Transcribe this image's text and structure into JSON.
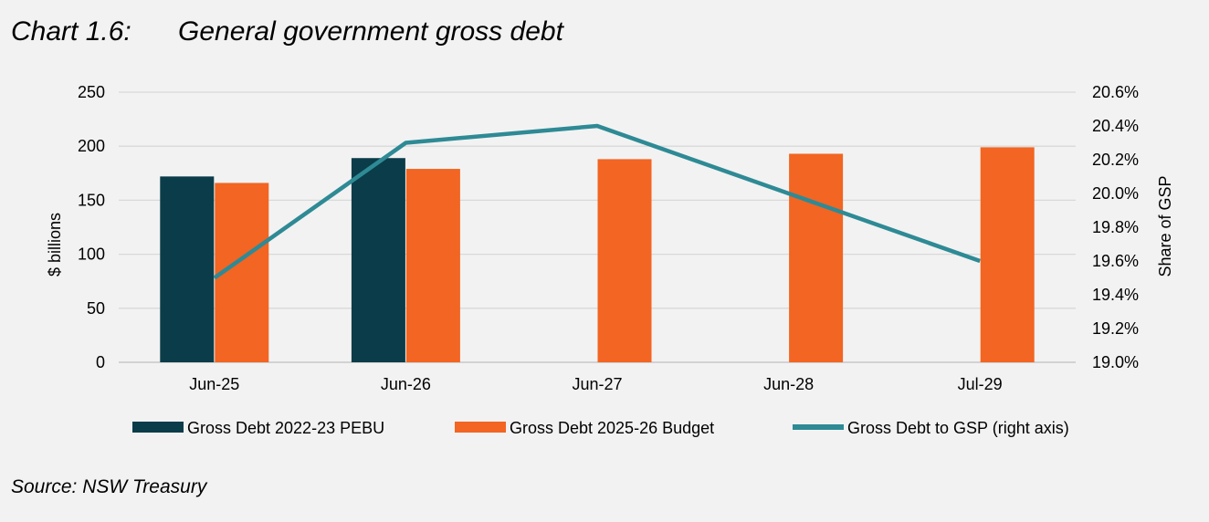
{
  "title": {
    "number": "Chart 1.6:",
    "text": "General government gross debt"
  },
  "source": "Source: NSW Treasury",
  "colors": {
    "pebu": "#0b3c49",
    "budget": "#f26522",
    "gsp": "#2e8a95",
    "grid": "#d9d9d9"
  },
  "chart_data": {
    "type": "bar",
    "categories": [
      "Jun-25",
      "Jun-26",
      "Jun-27",
      "Jun-28",
      "Jul-29"
    ],
    "series": [
      {
        "name": "Gross Debt 2022-23 PEBU",
        "type": "bar",
        "axis": "left",
        "values": [
          172,
          189,
          null,
          null,
          null
        ]
      },
      {
        "name": "Gross Debt 2025-26 Budget",
        "type": "bar",
        "axis": "left",
        "values": [
          166,
          179,
          188,
          193,
          199
        ]
      },
      {
        "name": "Gross Debt to GSP (right axis)",
        "type": "line",
        "axis": "right",
        "values": [
          19.5,
          20.3,
          20.4,
          20.0,
          19.6
        ]
      }
    ],
    "ylabel": "$ billions",
    "ylim": [
      0,
      250
    ],
    "yticks": [
      "0",
      "50",
      "100",
      "150",
      "200",
      "250"
    ],
    "y2label": "Share of GSP",
    "y2lim": [
      19.0,
      20.6
    ],
    "y2ticks": [
      "19.0%",
      "19.2%",
      "19.4%",
      "19.6%",
      "19.8%",
      "20.0%",
      "20.2%",
      "20.4%",
      "20.6%"
    ],
    "grid": true,
    "legend": "bottom"
  }
}
